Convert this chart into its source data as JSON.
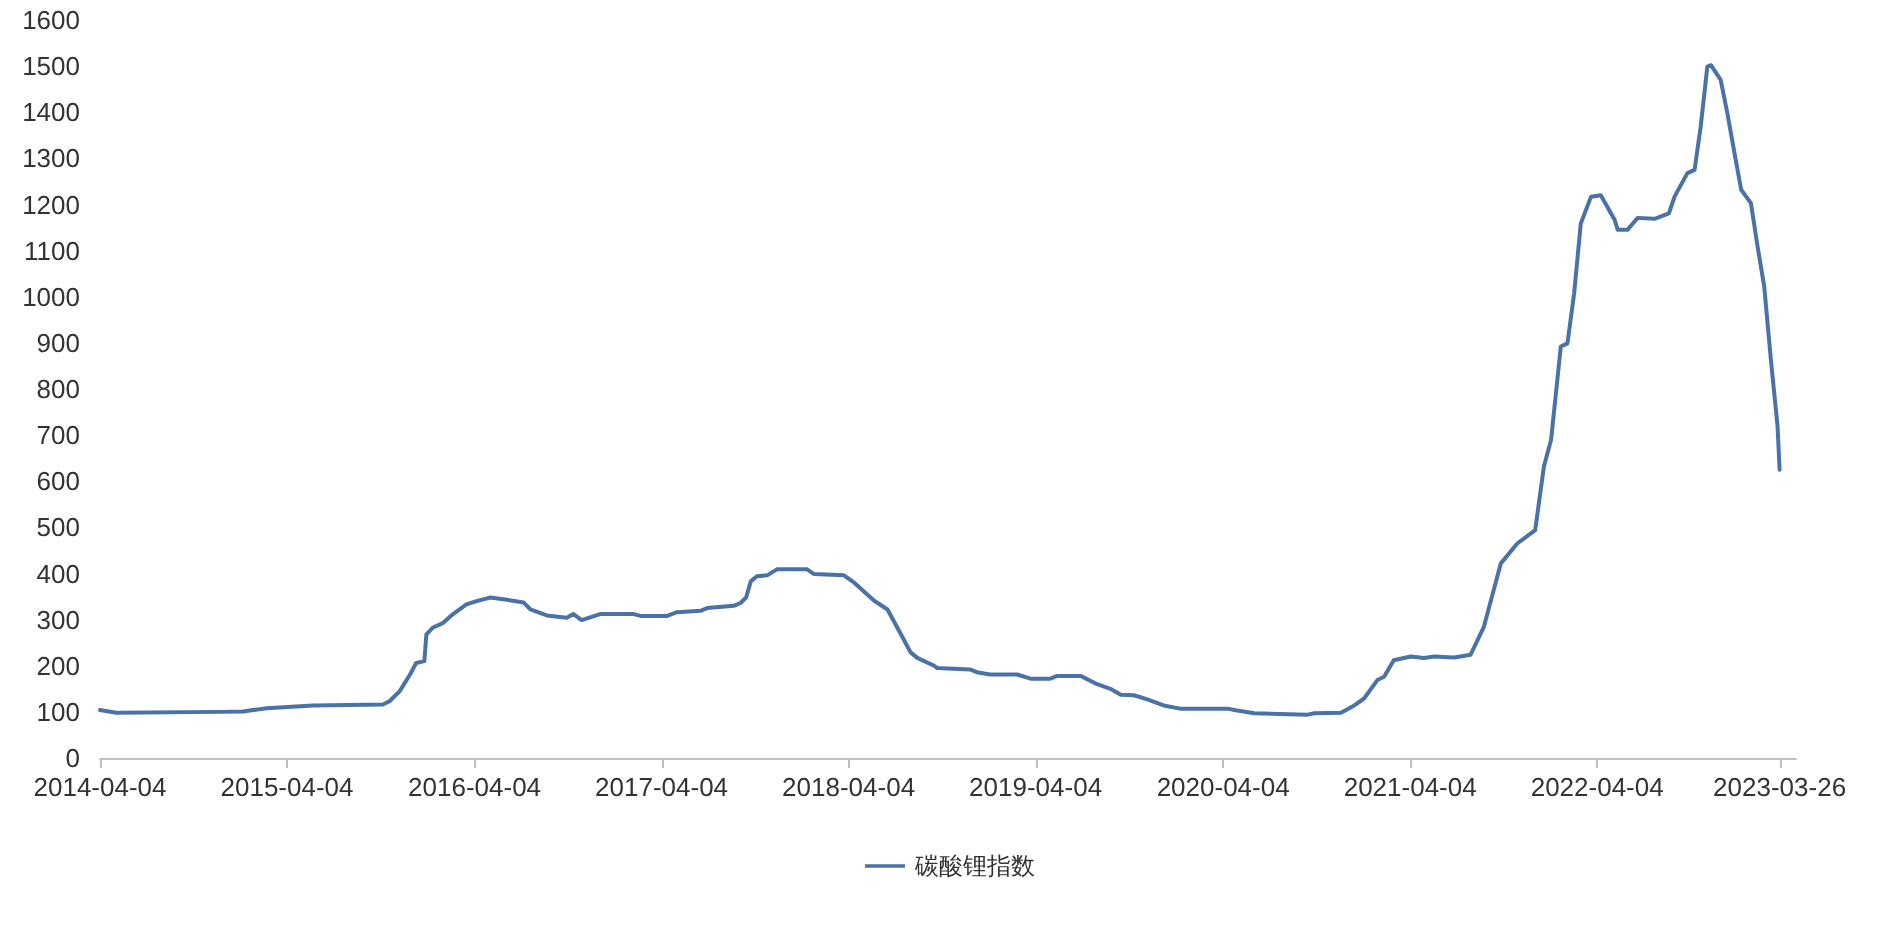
{
  "chart_data": {
    "type": "line",
    "legend": "bottom",
    "grid": false,
    "marker": "none",
    "line_style": "solid",
    "xlim": [
      "2014-04-04",
      "2023-04-27"
    ],
    "xticks": [
      "2014-04-04",
      "2015-04-04",
      "2016-04-04",
      "2017-04-04",
      "2018-04-04",
      "2019-04-04",
      "2020-04-04",
      "2021-04-04",
      "2022-04-04",
      "2023-03-26"
    ],
    "ylim": [
      0,
      1600
    ],
    "yticks": [
      0,
      100,
      200,
      300,
      400,
      500,
      600,
      700,
      800,
      900,
      1000,
      1100,
      1200,
      1300,
      1400,
      1500,
      1600
    ],
    "series": [
      {
        "name": "碳酸锂指数",
        "color": "#4a72a8",
        "x": [
          "2014-04-04",
          "2014-05-06",
          "2014-11-23",
          "2015-01-08",
          "2015-02-23",
          "2015-05-25",
          "2015-10-08",
          "2015-10-21",
          "2015-11-10",
          "2015-11-30",
          "2015-12-12",
          "2015-12-28",
          "2016-01-01",
          "2016-01-14",
          "2016-02-03",
          "2016-02-22",
          "2016-03-19",
          "2016-04-08",
          "2016-05-05",
          "2016-06-06",
          "2016-07-09",
          "2016-07-22",
          "2016-08-23",
          "2016-10-01",
          "2016-10-14",
          "2016-10-30",
          "2016-12-05",
          "2017-02-09",
          "2017-02-22",
          "2017-04-15",
          "2017-05-04",
          "2017-06-19",
          "2017-07-02",
          "2017-08-23",
          "2017-09-05",
          "2017-09-16",
          "2017-09-25",
          "2017-10-07",
          "2017-10-27",
          "2017-11-15",
          "2018-01-13",
          "2018-01-26",
          "2018-03-26",
          "2018-04-15",
          "2018-05-24",
          "2018-06-19",
          "2018-07-08",
          "2018-08-03",
          "2018-08-16",
          "2018-09-18",
          "2018-09-24",
          "2018-11-27",
          "2018-12-10",
          "2019-01-05",
          "2019-02-27",
          "2019-03-25",
          "2019-05-03",
          "2019-05-16",
          "2019-07-01",
          "2019-08-02",
          "2019-08-28",
          "2019-09-17",
          "2019-10-13",
          "2019-11-08",
          "2019-12-10",
          "2020-01-11",
          "2020-04-12",
          "2020-05-01",
          "2020-06-04",
          "2020-09-16",
          "2020-09-29",
          "2020-11-20",
          "2020-12-16",
          "2021-01-04",
          "2021-01-30",
          "2021-02-12",
          "2021-03-03",
          "2021-04-05",
          "2021-05-01",
          "2021-05-21",
          "2021-06-29",
          "2021-07-31",
          "2021-08-26",
          "2021-09-28",
          "2021-10-30",
          "2021-12-04",
          "2021-12-21",
          "2022-01-04",
          "2022-01-23",
          "2022-02-05",
          "2022-02-18",
          "2022-03-03",
          "2022-03-23",
          "2022-04-11",
          "2022-05-08",
          "2022-05-14",
          "2022-06-02",
          "2022-06-22",
          "2022-07-25",
          "2022-08-22",
          "2022-09-02",
          "2022-09-27",
          "2022-10-11",
          "2022-10-23",
          "2022-11-05",
          "2022-11-12",
          "2022-12-01",
          "2022-12-14",
          "2022-12-28",
          "2023-01-10",
          "2023-01-29",
          "2023-02-11",
          "2023-02-24",
          "2023-03-09",
          "2023-03-22",
          "2023-03-26"
        ],
        "values": [
          104,
          98,
          100,
          101,
          108,
          114,
          116,
          123,
          145,
          181,
          206,
          210,
          268,
          283,
          293,
          312,
          333,
          340,
          348,
          343,
          337,
          322,
          309,
          304,
          312,
          299,
          312,
          312,
          308,
          308,
          316,
          319,
          325,
          330,
          336,
          348,
          383,
          394,
          396,
          409,
          409,
          399,
          396,
          380,
          341,
          322,
          283,
          229,
          217,
          200,
          195,
          192,
          186,
          181,
          181,
          172,
          172,
          178,
          178,
          160,
          150,
          137,
          136,
          127,
          114,
          107,
          107,
          103,
          97,
          94,
          97,
          98,
          114,
          129,
          169,
          176,
          212,
          220,
          217,
          220,
          218,
          224,
          285,
          422,
          465,
          494,
          632,
          690,
          892,
          899,
          1007,
          1159,
          1217,
          1220,
          1167,
          1145,
          1145,
          1171,
          1169,
          1181,
          1217,
          1268,
          1275,
          1369,
          1499,
          1502,
          1470,
          1398,
          1311,
          1232,
          1203,
          1109,
          1022,
          863,
          719,
          625
        ]
      }
    ]
  }
}
